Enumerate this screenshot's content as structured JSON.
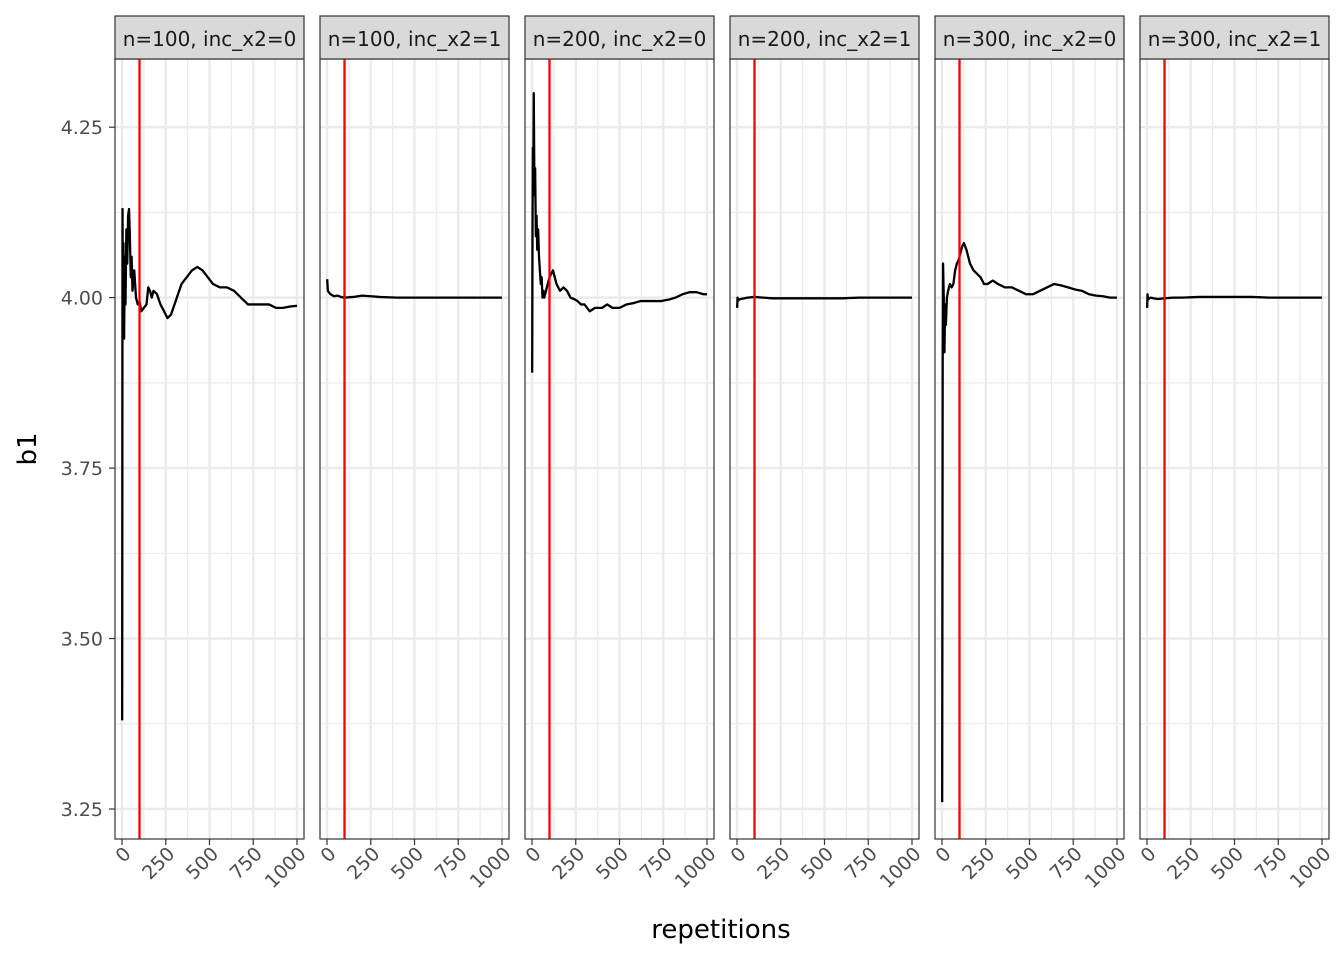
{
  "chart_data": {
    "type": "line",
    "xlabel": "repetitions",
    "ylabel": "b1",
    "x_ticks": [
      0,
      250,
      500,
      750,
      1000
    ],
    "x_tick_labels": [
      "0",
      "250",
      "500",
      "750",
      "1000"
    ],
    "xlim": [
      -40,
      1040
    ],
    "y_ticks": [
      3.25,
      3.5,
      3.75,
      4.0,
      4.25
    ],
    "y_tick_labels": [
      "3.25",
      "3.50",
      "3.75",
      "4.00",
      "4.25"
    ],
    "ylim": [
      3.206,
      4.35
    ],
    "reference_x": 100,
    "colors": {
      "line": "#000000",
      "reference": "#ff0000",
      "strip_bg": "#d9d9d9",
      "grid": "#ebebeb"
    },
    "grid": true,
    "panels": [
      {
        "strip": "n=100, inc_x2=0",
        "series": [
          [
            1,
            3.38
          ],
          [
            3,
            4.13
          ],
          [
            5,
            3.94
          ],
          [
            8,
            4.08
          ],
          [
            12,
            3.94
          ],
          [
            16,
            4.06
          ],
          [
            20,
            3.99
          ],
          [
            25,
            4.1
          ],
          [
            30,
            4.05
          ],
          [
            35,
            4.12
          ],
          [
            40,
            4.13
          ],
          [
            45,
            4.09
          ],
          [
            50,
            4.03
          ],
          [
            55,
            4.06
          ],
          [
            60,
            4.01
          ],
          [
            70,
            4.04
          ],
          [
            80,
            4.0
          ],
          [
            90,
            3.99
          ],
          [
            100,
            3.995
          ],
          [
            110,
            3.98
          ],
          [
            125,
            3.985
          ],
          [
            140,
            3.99
          ],
          [
            150,
            4.015
          ],
          [
            160,
            4.01
          ],
          [
            170,
            4.0
          ],
          [
            180,
            4.01
          ],
          [
            200,
            4.005
          ],
          [
            220,
            3.99
          ],
          [
            240,
            3.98
          ],
          [
            260,
            3.97
          ],
          [
            280,
            3.975
          ],
          [
            300,
            3.99
          ],
          [
            320,
            4.005
          ],
          [
            340,
            4.02
          ],
          [
            370,
            4.03
          ],
          [
            400,
            4.04
          ],
          [
            430,
            4.045
          ],
          [
            460,
            4.04
          ],
          [
            490,
            4.03
          ],
          [
            520,
            4.02
          ],
          [
            560,
            4.015
          ],
          [
            600,
            4.015
          ],
          [
            640,
            4.01
          ],
          [
            680,
            4.0
          ],
          [
            720,
            3.99
          ],
          [
            760,
            3.99
          ],
          [
            800,
            3.99
          ],
          [
            840,
            3.99
          ],
          [
            880,
            3.985
          ],
          [
            920,
            3.985
          ],
          [
            960,
            3.987
          ],
          [
            1000,
            3.988
          ]
        ]
      },
      {
        "strip": "n=100, inc_x2=1",
        "series": [
          [
            1,
            4.027
          ],
          [
            5,
            4.01
          ],
          [
            10,
            4.008
          ],
          [
            20,
            4.005
          ],
          [
            40,
            4.002
          ],
          [
            60,
            4.003
          ],
          [
            80,
            4.001
          ],
          [
            100,
            4.0
          ],
          [
            150,
            4.001
          ],
          [
            200,
            4.003
          ],
          [
            250,
            4.002
          ],
          [
            300,
            4.001
          ],
          [
            400,
            4.0
          ],
          [
            500,
            4.0
          ],
          [
            600,
            4.0
          ],
          [
            700,
            4.0
          ],
          [
            800,
            4.0
          ],
          [
            900,
            4.0
          ],
          [
            1000,
            4.0
          ]
        ]
      },
      {
        "strip": "n=200, inc_x2=0",
        "series": [
          [
            1,
            3.89
          ],
          [
            3,
            4.1
          ],
          [
            5,
            4.22
          ],
          [
            8,
            4.2
          ],
          [
            10,
            4.3
          ],
          [
            14,
            4.15
          ],
          [
            18,
            4.19
          ],
          [
            22,
            4.09
          ],
          [
            26,
            4.12
          ],
          [
            30,
            4.07
          ],
          [
            35,
            4.1
          ],
          [
            40,
            4.06
          ],
          [
            45,
            4.04
          ],
          [
            50,
            4.02
          ],
          [
            55,
            4.03
          ],
          [
            60,
            4.0
          ],
          [
            65,
            4.01
          ],
          [
            70,
            4.0
          ],
          [
            80,
            4.01
          ],
          [
            90,
            4.02
          ],
          [
            100,
            4.03
          ],
          [
            110,
            4.035
          ],
          [
            120,
            4.04
          ],
          [
            130,
            4.03
          ],
          [
            140,
            4.02
          ],
          [
            160,
            4.01
          ],
          [
            180,
            4.015
          ],
          [
            200,
            4.01
          ],
          [
            220,
            4.0
          ],
          [
            240,
            3.998
          ],
          [
            260,
            3.995
          ],
          [
            280,
            3.99
          ],
          [
            300,
            3.99
          ],
          [
            330,
            3.98
          ],
          [
            360,
            3.985
          ],
          [
            400,
            3.985
          ],
          [
            430,
            3.99
          ],
          [
            460,
            3.985
          ],
          [
            500,
            3.985
          ],
          [
            540,
            3.99
          ],
          [
            580,
            3.992
          ],
          [
            620,
            3.995
          ],
          [
            660,
            3.995
          ],
          [
            700,
            3.995
          ],
          [
            740,
            3.995
          ],
          [
            780,
            3.997
          ],
          [
            820,
            4.0
          ],
          [
            860,
            4.005
          ],
          [
            900,
            4.008
          ],
          [
            940,
            4.008
          ],
          [
            980,
            4.005
          ],
          [
            1000,
            4.005
          ]
        ]
      },
      {
        "strip": "n=200, inc_x2=1",
        "series": [
          [
            1,
            3.985
          ],
          [
            3,
            4.0
          ],
          [
            5,
            3.995
          ],
          [
            10,
            3.997
          ],
          [
            20,
            3.998
          ],
          [
            40,
            3.999
          ],
          [
            60,
            4.0
          ],
          [
            100,
            4.001
          ],
          [
            150,
            4.0
          ],
          [
            200,
            3.999
          ],
          [
            300,
            3.999
          ],
          [
            400,
            3.999
          ],
          [
            500,
            3.999
          ],
          [
            600,
            3.999
          ],
          [
            700,
            4.0
          ],
          [
            800,
            4.0
          ],
          [
            900,
            4.0
          ],
          [
            1000,
            4.0
          ]
        ]
      },
      {
        "strip": "n=300, inc_x2=0",
        "series": [
          [
            1,
            3.26
          ],
          [
            4,
            3.91
          ],
          [
            6,
            4.05
          ],
          [
            10,
            4.0
          ],
          [
            14,
            3.92
          ],
          [
            18,
            3.99
          ],
          [
            22,
            3.96
          ],
          [
            28,
            4.0
          ],
          [
            35,
            4.01
          ],
          [
            45,
            4.02
          ],
          [
            55,
            4.015
          ],
          [
            65,
            4.02
          ],
          [
            75,
            4.04
          ],
          [
            85,
            4.05
          ],
          [
            95,
            4.055
          ],
          [
            105,
            4.065
          ],
          [
            115,
            4.075
          ],
          [
            125,
            4.08
          ],
          [
            140,
            4.07
          ],
          [
            160,
            4.05
          ],
          [
            180,
            4.04
          ],
          [
            200,
            4.035
          ],
          [
            220,
            4.03
          ],
          [
            240,
            4.02
          ],
          [
            260,
            4.02
          ],
          [
            290,
            4.025
          ],
          [
            320,
            4.02
          ],
          [
            360,
            4.015
          ],
          [
            400,
            4.015
          ],
          [
            440,
            4.01
          ],
          [
            480,
            4.005
          ],
          [
            520,
            4.005
          ],
          [
            560,
            4.01
          ],
          [
            600,
            4.015
          ],
          [
            640,
            4.02
          ],
          [
            680,
            4.018
          ],
          [
            720,
            4.015
          ],
          [
            760,
            4.012
          ],
          [
            800,
            4.01
          ],
          [
            840,
            4.005
          ],
          [
            880,
            4.003
          ],
          [
            920,
            4.002
          ],
          [
            960,
            4.0
          ],
          [
            1000,
            4.0
          ]
        ]
      },
      {
        "strip": "n=300, inc_x2=1",
        "series": [
          [
            1,
            3.985
          ],
          [
            3,
            4.005
          ],
          [
            6,
            3.997
          ],
          [
            10,
            3.998
          ],
          [
            20,
            4.0
          ],
          [
            40,
            3.999
          ],
          [
            60,
            3.998
          ],
          [
            100,
            3.999
          ],
          [
            150,
            4.0
          ],
          [
            200,
            4.0
          ],
          [
            300,
            4.001
          ],
          [
            400,
            4.001
          ],
          [
            500,
            4.001
          ],
          [
            600,
            4.001
          ],
          [
            700,
            4.0
          ],
          [
            800,
            4.0
          ],
          [
            900,
            4.0
          ],
          [
            1000,
            4.0
          ]
        ]
      }
    ]
  }
}
